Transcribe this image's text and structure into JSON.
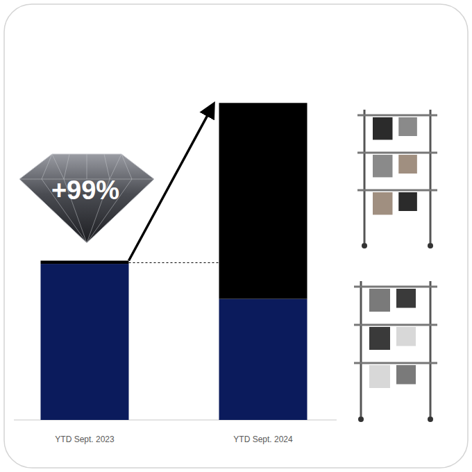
{
  "chart_data": {
    "type": "bar",
    "stacked": true,
    "categories": [
      "YTD Sept. 2023",
      "YTD Sept. 2024"
    ],
    "series": [
      {
        "color": "#0b1b5c",
        "values": [
          98,
          76
        ]
      },
      {
        "color": "#000000",
        "values": [
          2,
          123
        ]
      }
    ],
    "annotation": "+99%",
    "ylim": [
      0,
      200
    ],
    "tick_labels": "x",
    "grid": false
  }
}
